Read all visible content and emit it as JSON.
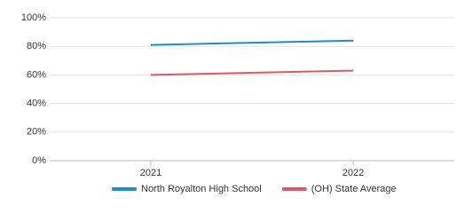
{
  "chart_data": {
    "type": "line",
    "categories": [
      "2021",
      "2022"
    ],
    "series": [
      {
        "name": "North Royalton High School",
        "color": "#1f8dc8",
        "values": [
          81,
          84
        ]
      },
      {
        "name": "(OH) State Average",
        "color": "#dc5a64",
        "values": [
          60,
          63
        ]
      }
    ],
    "ylim": [
      0,
      100
    ],
    "yticks": [
      {
        "value": 0,
        "label": "0%"
      },
      {
        "value": 20,
        "label": "20%"
      },
      {
        "value": 40,
        "label": "40%"
      },
      {
        "value": 60,
        "label": "60%"
      },
      {
        "value": 80,
        "label": "80%"
      },
      {
        "value": 100,
        "label": "100%"
      }
    ],
    "grid": true
  }
}
